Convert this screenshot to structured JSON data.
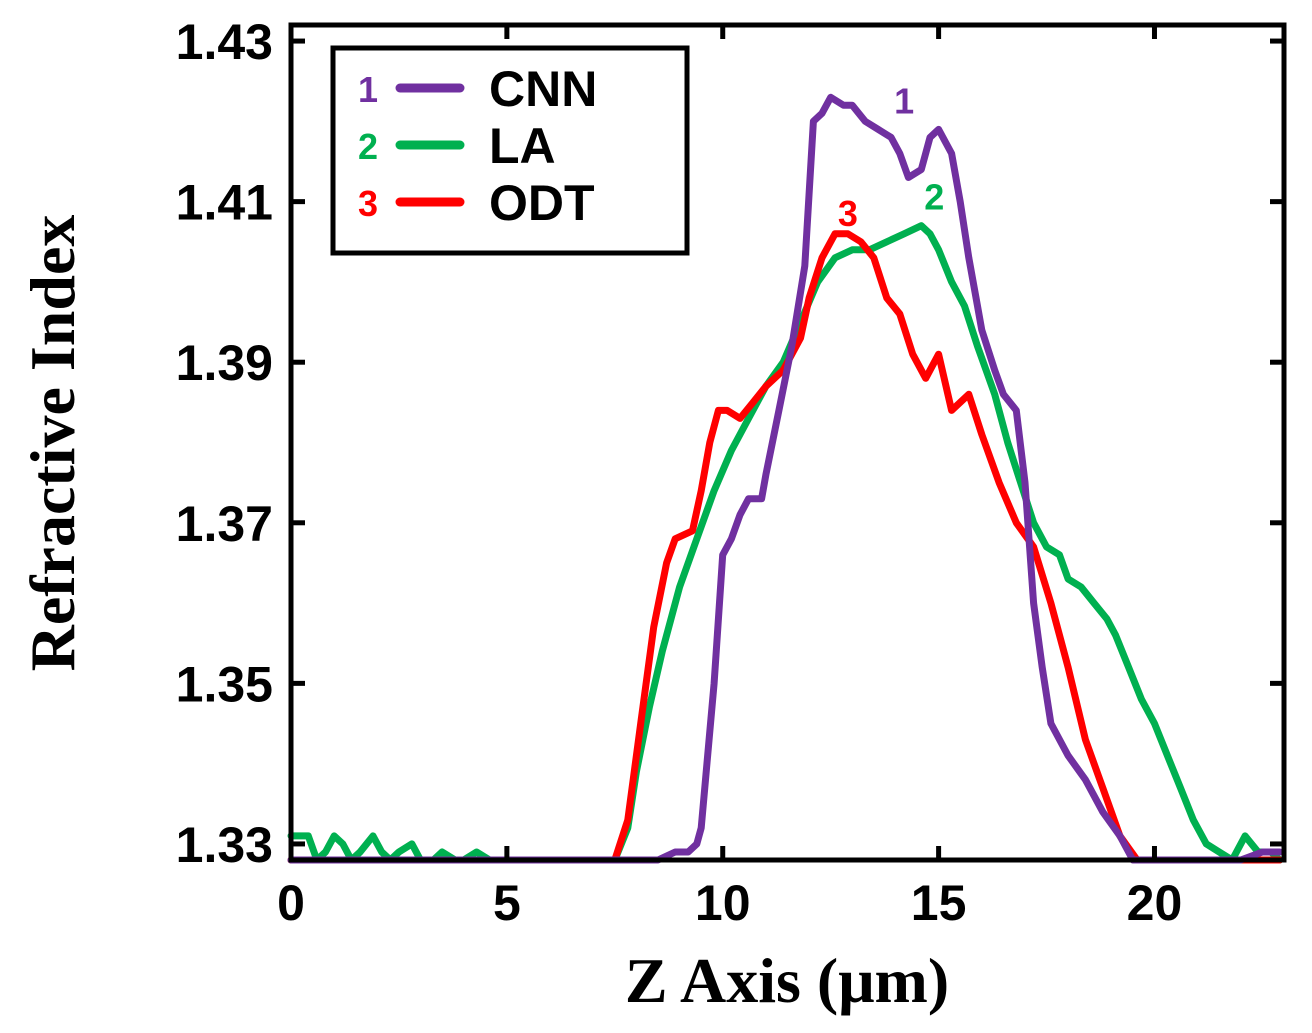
{
  "chart_data": {
    "type": "line",
    "xlabel": "Z Axis (μm)",
    "ylabel": "Refractive Index",
    "xlim": [
      0,
      23
    ],
    "ylim": [
      1.328,
      1.432
    ],
    "x_ticks": [
      0,
      5,
      10,
      15,
      20
    ],
    "x_tick_labels": [
      "0",
      "5",
      "10",
      "15",
      "20"
    ],
    "y_ticks": [
      1.33,
      1.35,
      1.37,
      1.39,
      1.41,
      1.43
    ],
    "y_tick_labels": [
      "1.33",
      "1.35",
      "1.37",
      "1.39",
      "1.41",
      "1.43"
    ],
    "grid": false,
    "legend": {
      "position": "top-left",
      "entries": [
        {
          "num": "1",
          "label": "CNN",
          "color": "#7030A0"
        },
        {
          "num": "2",
          "label": "LA",
          "color": "#00B050"
        },
        {
          "num": "3",
          "label": "ODT",
          "color": "#FF0000"
        }
      ]
    },
    "series": [
      {
        "name": "CNN",
        "num": "1",
        "color": "#7030A0",
        "label_at": [
          14.2,
          1.42
        ],
        "points": [
          [
            0,
            1.328
          ],
          [
            7.5,
            1.328
          ],
          [
            8.5,
            1.328
          ],
          [
            8.9,
            1.329
          ],
          [
            9.2,
            1.329
          ],
          [
            9.4,
            1.33
          ],
          [
            9.5,
            1.332
          ],
          [
            9.6,
            1.338
          ],
          [
            9.8,
            1.35
          ],
          [
            10.0,
            1.366
          ],
          [
            10.2,
            1.368
          ],
          [
            10.4,
            1.371
          ],
          [
            10.6,
            1.373
          ],
          [
            10.9,
            1.373
          ],
          [
            11.0,
            1.376
          ],
          [
            11.3,
            1.384
          ],
          [
            11.6,
            1.392
          ],
          [
            11.9,
            1.402
          ],
          [
            12.1,
            1.42
          ],
          [
            12.3,
            1.421
          ],
          [
            12.5,
            1.423
          ],
          [
            12.8,
            1.422
          ],
          [
            13.0,
            1.422
          ],
          [
            13.3,
            1.42
          ],
          [
            13.6,
            1.419
          ],
          [
            13.9,
            1.418
          ],
          [
            14.1,
            1.416
          ],
          [
            14.3,
            1.413
          ],
          [
            14.6,
            1.414
          ],
          [
            14.8,
            1.418
          ],
          [
            15.0,
            1.419
          ],
          [
            15.3,
            1.416
          ],
          [
            15.5,
            1.41
          ],
          [
            15.7,
            1.403
          ],
          [
            15.9,
            1.397
          ],
          [
            16.0,
            1.394
          ],
          [
            16.3,
            1.389
          ],
          [
            16.5,
            1.386
          ],
          [
            16.8,
            1.384
          ],
          [
            17.0,
            1.375
          ],
          [
            17.2,
            1.36
          ],
          [
            17.4,
            1.352
          ],
          [
            17.6,
            1.345
          ],
          [
            18.0,
            1.341
          ],
          [
            18.4,
            1.338
          ],
          [
            18.8,
            1.334
          ],
          [
            19.2,
            1.331
          ],
          [
            19.5,
            1.328
          ],
          [
            20.0,
            1.328
          ],
          [
            21.0,
            1.328
          ],
          [
            22.0,
            1.328
          ],
          [
            22.5,
            1.329
          ],
          [
            22.9,
            1.329
          ]
        ]
      },
      {
        "name": "LA",
        "num": "2",
        "color": "#00B050",
        "label_at": [
          14.9,
          1.408
        ],
        "points": [
          [
            0,
            1.331
          ],
          [
            0.4,
            1.331
          ],
          [
            0.6,
            1.328
          ],
          [
            0.8,
            1.329
          ],
          [
            1.0,
            1.331
          ],
          [
            1.2,
            1.33
          ],
          [
            1.4,
            1.328
          ],
          [
            1.6,
            1.329
          ],
          [
            1.9,
            1.331
          ],
          [
            2.1,
            1.329
          ],
          [
            2.3,
            1.328
          ],
          [
            2.5,
            1.329
          ],
          [
            2.8,
            1.33
          ],
          [
            3.0,
            1.328
          ],
          [
            3.3,
            1.328
          ],
          [
            3.5,
            1.329
          ],
          [
            3.8,
            1.328
          ],
          [
            4.0,
            1.328
          ],
          [
            4.3,
            1.329
          ],
          [
            4.6,
            1.328
          ],
          [
            5.0,
            1.328
          ],
          [
            5.5,
            1.328
          ],
          [
            6.0,
            1.328
          ],
          [
            6.5,
            1.328
          ],
          [
            7.0,
            1.328
          ],
          [
            7.5,
            1.328
          ],
          [
            7.8,
            1.332
          ],
          [
            8.0,
            1.339
          ],
          [
            8.3,
            1.347
          ],
          [
            8.6,
            1.354
          ],
          [
            9.0,
            1.362
          ],
          [
            9.4,
            1.368
          ],
          [
            9.8,
            1.374
          ],
          [
            10.2,
            1.379
          ],
          [
            10.6,
            1.383
          ],
          [
            11.0,
            1.387
          ],
          [
            11.4,
            1.39
          ],
          [
            11.8,
            1.395
          ],
          [
            12.2,
            1.4
          ],
          [
            12.6,
            1.403
          ],
          [
            13.0,
            1.404
          ],
          [
            13.4,
            1.404
          ],
          [
            13.8,
            1.405
          ],
          [
            14.2,
            1.406
          ],
          [
            14.6,
            1.407
          ],
          [
            14.8,
            1.406
          ],
          [
            15.0,
            1.404
          ],
          [
            15.3,
            1.4
          ],
          [
            15.6,
            1.397
          ],
          [
            15.9,
            1.392
          ],
          [
            16.1,
            1.389
          ],
          [
            16.3,
            1.386
          ],
          [
            16.6,
            1.38
          ],
          [
            16.9,
            1.375
          ],
          [
            17.2,
            1.37
          ],
          [
            17.5,
            1.367
          ],
          [
            17.8,
            1.366
          ],
          [
            18.0,
            1.363
          ],
          [
            18.3,
            1.362
          ],
          [
            18.6,
            1.36
          ],
          [
            18.9,
            1.358
          ],
          [
            19.1,
            1.356
          ],
          [
            19.4,
            1.352
          ],
          [
            19.7,
            1.348
          ],
          [
            20.0,
            1.345
          ],
          [
            20.3,
            1.341
          ],
          [
            20.6,
            1.337
          ],
          [
            20.9,
            1.333
          ],
          [
            21.2,
            1.33
          ],
          [
            21.5,
            1.329
          ],
          [
            21.8,
            1.328
          ],
          [
            22.1,
            1.331
          ],
          [
            22.4,
            1.329
          ],
          [
            22.7,
            1.329
          ],
          [
            22.9,
            1.328
          ]
        ]
      },
      {
        "name": "ODT",
        "num": "3",
        "color": "#FF0000",
        "label_at": [
          12.9,
          1.406
        ],
        "points": [
          [
            0,
            1.328
          ],
          [
            7.5,
            1.328
          ],
          [
            7.8,
            1.333
          ],
          [
            8.1,
            1.345
          ],
          [
            8.4,
            1.357
          ],
          [
            8.7,
            1.365
          ],
          [
            8.9,
            1.368
          ],
          [
            9.3,
            1.369
          ],
          [
            9.5,
            1.374
          ],
          [
            9.7,
            1.38
          ],
          [
            9.9,
            1.384
          ],
          [
            10.1,
            1.384
          ],
          [
            10.4,
            1.383
          ],
          [
            10.7,
            1.385
          ],
          [
            11.0,
            1.387
          ],
          [
            11.4,
            1.389
          ],
          [
            11.8,
            1.393
          ],
          [
            12.0,
            1.398
          ],
          [
            12.3,
            1.403
          ],
          [
            12.6,
            1.406
          ],
          [
            12.9,
            1.406
          ],
          [
            13.2,
            1.405
          ],
          [
            13.5,
            1.403
          ],
          [
            13.8,
            1.398
          ],
          [
            14.1,
            1.396
          ],
          [
            14.4,
            1.391
          ],
          [
            14.7,
            1.388
          ],
          [
            15.0,
            1.391
          ],
          [
            15.3,
            1.384
          ],
          [
            15.7,
            1.386
          ],
          [
            16.0,
            1.381
          ],
          [
            16.4,
            1.375
          ],
          [
            16.8,
            1.37
          ],
          [
            17.2,
            1.367
          ],
          [
            17.6,
            1.36
          ],
          [
            18.0,
            1.352
          ],
          [
            18.4,
            1.343
          ],
          [
            18.8,
            1.337
          ],
          [
            19.2,
            1.331
          ],
          [
            19.6,
            1.328
          ],
          [
            21.0,
            1.328
          ],
          [
            22.9,
            1.328
          ]
        ]
      }
    ]
  }
}
